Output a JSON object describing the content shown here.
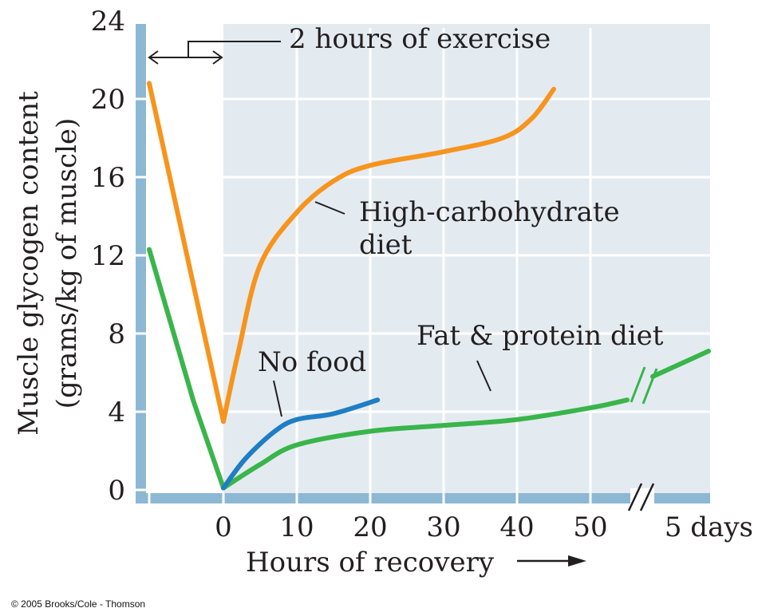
{
  "chart_data": {
    "type": "line",
    "ylabel_line1": "Muscle glycogen content",
    "ylabel_line2": "(grams/kg of muscle)",
    "xlabel": "Hours of recovery",
    "ylim": [
      0,
      24
    ],
    "y_ticks": [
      "0",
      "4",
      "8",
      "12",
      "16",
      "20",
      "24"
    ],
    "x_ticks": [
      "0",
      "10",
      "20",
      "30",
      "40",
      "50"
    ],
    "x_break_tick": "5 days",
    "exercise_annotation": "2 hours of exercise",
    "grid": true,
    "series": [
      {
        "name": "High-carbohydrate diet",
        "label_lines": [
          "High-carbohydrate",
          "diet"
        ],
        "color": "#F7941D",
        "exercise": [
          [
            -10,
            20.8
          ],
          [
            0,
            3.5
          ]
        ],
        "points": [
          [
            0,
            3.5
          ],
          [
            2,
            7.0
          ],
          [
            5,
            11.5
          ],
          [
            10,
            14.2
          ],
          [
            15,
            15.8
          ],
          [
            20,
            16.6
          ],
          [
            30,
            17.3
          ],
          [
            38,
            18.0
          ],
          [
            42,
            19.0
          ],
          [
            45,
            20.5
          ]
        ]
      },
      {
        "name": "Fat & protein diet",
        "label_lines": [
          "Fat & protein diet"
        ],
        "color": "#39B54A",
        "exercise": [
          [
            -10,
            12.3
          ],
          [
            -4,
            4.5
          ],
          [
            0,
            0.1
          ]
        ],
        "points": [
          [
            0,
            0.1
          ],
          [
            5,
            1.3
          ],
          [
            10,
            2.3
          ],
          [
            20,
            3.0
          ],
          [
            30,
            3.3
          ],
          [
            40,
            3.6
          ],
          [
            50,
            4.2
          ],
          [
            55,
            4.6
          ]
        ],
        "after_break": [
          [
            5,
            5.8
          ],
          [
            6,
            7.1
          ]
        ]
      },
      {
        "name": "No food",
        "label_lines": [
          "No food"
        ],
        "color": "#1F7EC4",
        "points": [
          [
            0,
            0.1
          ],
          [
            3,
            1.6
          ],
          [
            7,
            3.0
          ],
          [
            10,
            3.6
          ],
          [
            15,
            3.9
          ],
          [
            21,
            4.6
          ]
        ]
      }
    ]
  },
  "copyright": "© 2005 Brooks/Cole - Thomson"
}
